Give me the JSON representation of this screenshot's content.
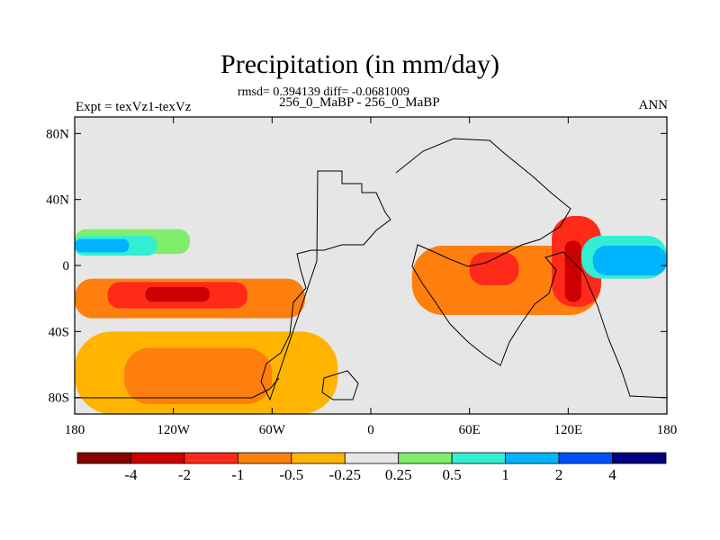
{
  "chart_data": {
    "type": "heatmap",
    "title": "Precipitation (in mm/day)",
    "subtitle": "rmsd= 0.394139 diff= -0.0681009",
    "left_label": "Expt = texVz1-texVz",
    "center_label": "256_0_MaBP - 256_0_MaBP",
    "right_label": "ANN",
    "xlabel": "",
    "ylabel": "",
    "xlim": [
      -180,
      180
    ],
    "ylim": [
      -90,
      90
    ],
    "x_ticks": [
      {
        "value": -180,
        "label": "180"
      },
      {
        "value": -120,
        "label": "120W"
      },
      {
        "value": -60,
        "label": "60W"
      },
      {
        "value": 0,
        "label": "0"
      },
      {
        "value": 60,
        "label": "60E"
      },
      {
        "value": 120,
        "label": "120E"
      },
      {
        "value": 180,
        "label": "180"
      }
    ],
    "y_ticks": [
      {
        "value": 80,
        "label": "80N"
      },
      {
        "value": 40,
        "label": "40N"
      },
      {
        "value": 0,
        "label": "0"
      },
      {
        "value": -40,
        "label": "40S"
      },
      {
        "value": -80,
        "label": "80S"
      }
    ],
    "colorbar": {
      "levels": [
        "-4",
        "-2",
        "-1",
        "-0.5",
        "-0.25",
        "0.25",
        "0.5",
        "1",
        "2",
        "4"
      ],
      "colors": [
        "#8b0000",
        "#cc0000",
        "#ff2a1a",
        "#ff7f0e",
        "#ffb400",
        "#e6e6e6",
        "#80ee6b",
        "#33eed2",
        "#00b4ff",
        "#0050ff",
        "#000080"
      ]
    },
    "regions": [
      {
        "name": "north-pacific-wet-band",
        "category": 0.5,
        "lat": [
          7,
          22
        ],
        "lon": [
          -180,
          -110
        ]
      },
      {
        "name": "north-pacific-wet-core",
        "category": 1,
        "lat": [
          6,
          18
        ],
        "lon": [
          -180,
          -130
        ]
      },
      {
        "name": "north-pacific-wet-inner",
        "category": 2,
        "lat": [
          8,
          16
        ],
        "lon": [
          -180,
          -147
        ]
      },
      {
        "name": "south-pacific-dry-band",
        "category": -0.5,
        "lat": [
          -32,
          -8
        ],
        "lon": [
          -180,
          -40
        ]
      },
      {
        "name": "south-pacific-dry-core",
        "category": -1,
        "lat": [
          -26,
          -10
        ],
        "lon": [
          -160,
          -75
        ]
      },
      {
        "name": "south-pacific-dry-max",
        "category": -2,
        "lat": [
          -22,
          -13
        ],
        "lon": [
          -137,
          -98
        ]
      },
      {
        "name": "southern-ocean-dry",
        "category": -0.25,
        "lat": [
          -90,
          -40
        ],
        "lon": [
          -180,
          -20
        ]
      },
      {
        "name": "southern-ocean-dry-core",
        "category": -0.5,
        "lat": [
          -84,
          -50
        ],
        "lon": [
          -150,
          -60
        ]
      },
      {
        "name": "africa-equatorial-dry",
        "category": -0.5,
        "lat": [
          -30,
          12
        ],
        "lon": [
          25,
          140
        ]
      },
      {
        "name": "africa-equatorial-dry-max",
        "category": -1,
        "lat": [
          -12,
          8
        ],
        "lon": [
          60,
          90
        ]
      },
      {
        "name": "west-pacific-dry",
        "category": -1,
        "lat": [
          -25,
          30
        ],
        "lon": [
          110,
          140
        ]
      },
      {
        "name": "west-pacific-dry-max",
        "category": -2,
        "lat": [
          -22,
          15
        ],
        "lon": [
          118,
          128
        ]
      },
      {
        "name": "tropical-east-wet",
        "category": 1,
        "lat": [
          -8,
          18
        ],
        "lon": [
          128,
          180
        ]
      },
      {
        "name": "tropical-east-wet-core",
        "category": 2,
        "lat": [
          -6,
          12
        ],
        "lon": [
          135,
          180
        ]
      }
    ]
  }
}
